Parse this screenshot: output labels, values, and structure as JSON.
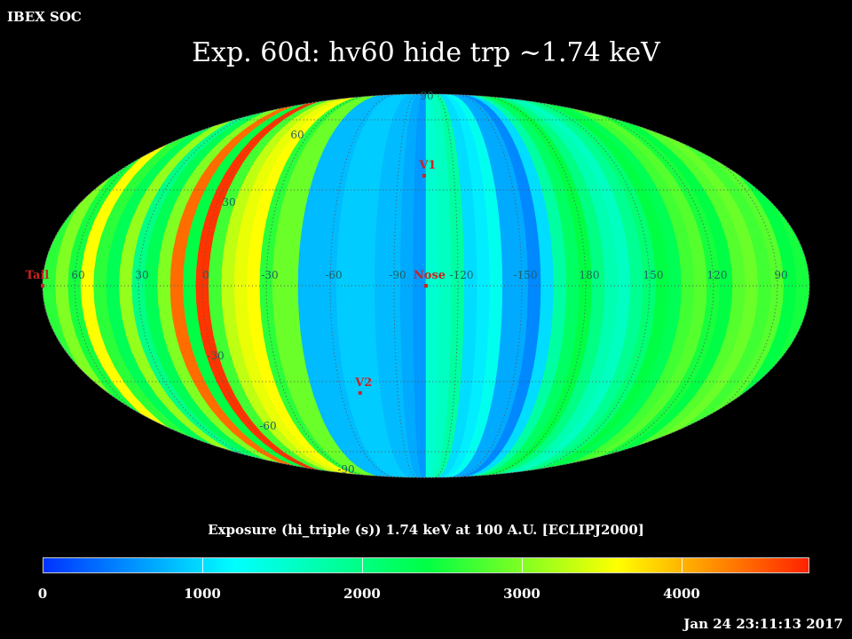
{
  "header": {
    "app": "IBEX SOC",
    "timestamp": "Jan 24 23:11:13 2017"
  },
  "title": "Exp.   60d: hv60 hide trp ~1.74 keV",
  "colorbar": {
    "caption": "Exposure (hi_triple (s))  1.74 keV at 100 A.U. [ECLIPJ2000]",
    "min": 0,
    "max": 4800,
    "ticks": [
      "0",
      "1000",
      "2000",
      "3000",
      "4000"
    ],
    "tick_values": [
      0,
      1000,
      2000,
      3000,
      4000
    ],
    "colors": [
      "#0033ff",
      "#00ffff",
      "#00ff44",
      "#ffff00",
      "#ff2200"
    ]
  },
  "map": {
    "projection": "Aitoff/Mollweide (ecliptic)",
    "grid_color": "#555555",
    "lon_labels": [
      "60",
      "30",
      "0",
      "-30",
      "-60",
      "-90",
      "-120",
      "-150",
      "180",
      "150",
      "120",
      "90"
    ],
    "lon_values": [
      60,
      30,
      0,
      -30,
      -60,
      -90,
      -120,
      -150,
      180,
      150,
      120,
      90
    ],
    "lat_labels": [
      "90",
      "60",
      "30",
      "-30",
      "-60",
      "-90"
    ],
    "lat_values": [
      90,
      60,
      30,
      -30,
      -60,
      -90
    ],
    "markers": [
      {
        "label": "V1",
        "lon": -104,
        "lat": 35,
        "color": "#cc2222"
      },
      {
        "label": "Nose",
        "lon": -105,
        "lat": 0,
        "color": "#cc2222"
      },
      {
        "label": "V2",
        "lon": -70,
        "lat": -34,
        "color": "#cc2222"
      },
      {
        "label": "Tail",
        "lon": 75,
        "lat": 0,
        "color": "#cc2222"
      }
    ],
    "strip_values": [
      2600,
      3000,
      2500,
      3600,
      2600,
      2300,
      3100,
      2000,
      2300,
      3000,
      4400,
      2400,
      4700,
      2700,
      3300,
      3500,
      3600,
      2600,
      2900,
      2900,
      800,
      800,
      800,
      900,
      900,
      900,
      800,
      800,
      700,
      600,
      1500,
      1600,
      1800,
      1000,
      1100,
      1300,
      700,
      700,
      500,
      1000,
      1800,
      2200,
      2400,
      2000,
      1700,
      1600,
      1900,
      2100,
      2400,
      2300,
      2700,
      2800,
      2500,
      2400,
      2800,
      2900,
      2700,
      2800,
      2400,
      2500
    ]
  }
}
